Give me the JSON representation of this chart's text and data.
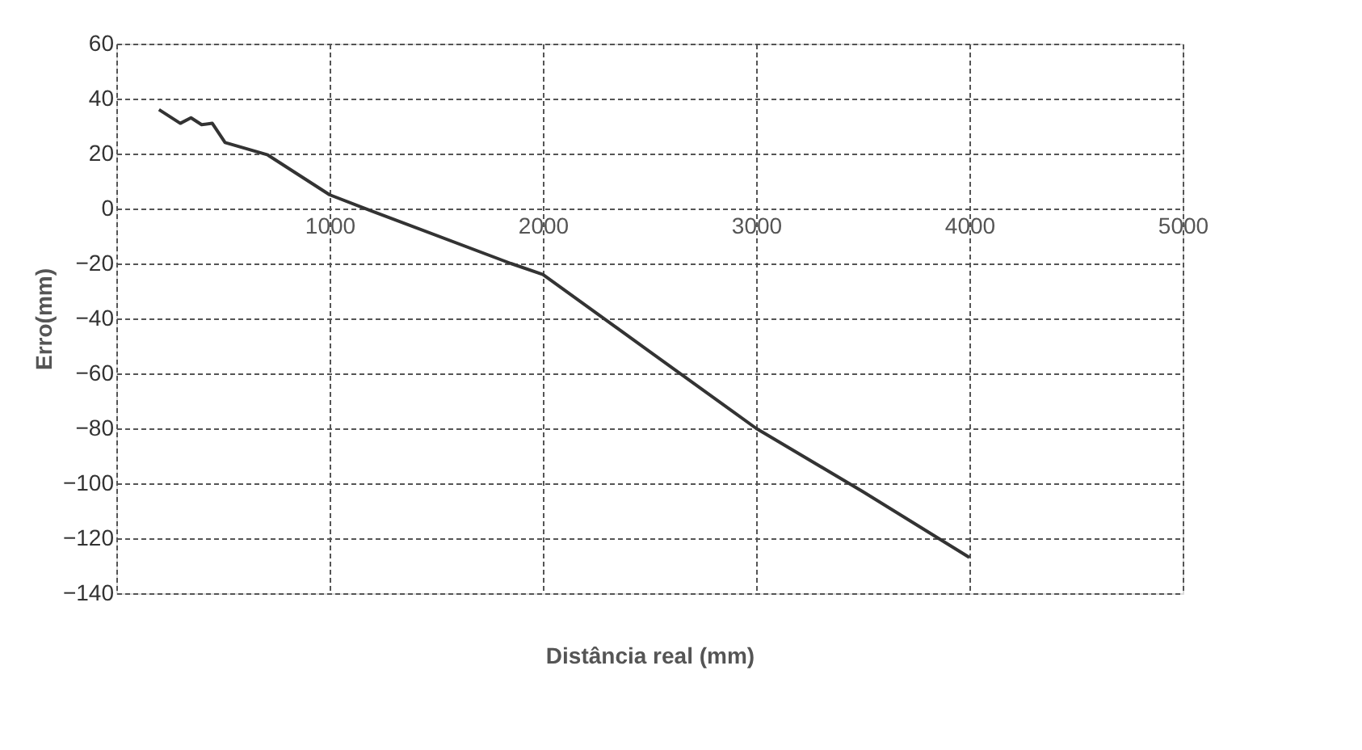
{
  "chart_data": {
    "type": "line",
    "xlabel": "Distância real (mm)",
    "ylabel": "Erro(mm)",
    "x": [
      200,
      300,
      350,
      400,
      450,
      510,
      710,
      1000,
      1200,
      1850,
      2000,
      2500,
      3000,
      3500,
      4000
    ],
    "series": [
      {
        "color": "#333333",
        "values": [
          36,
          31,
          33,
          30.5,
          31,
          24,
          19.5,
          5,
          -1,
          -20,
          -24,
          -52,
          -80,
          -103,
          -127
        ]
      }
    ],
    "xlim": [
      0,
      5000
    ],
    "xticks": [
      {
        "value": 0,
        "label": null
      },
      1000,
      2000,
      3000,
      4000,
      5000
    ],
    "ylim": [
      -140,
      60
    ],
    "yticks": [
      -140,
      -120,
      -100,
      -80,
      -60,
      -40,
      -20,
      0,
      20,
      40,
      60
    ],
    "grid": true,
    "marker": "none",
    "line_style": "solid"
  }
}
